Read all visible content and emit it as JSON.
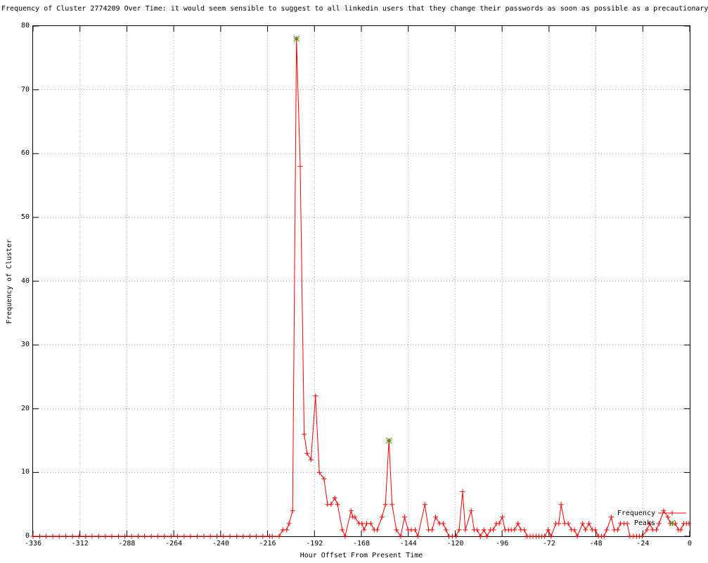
{
  "chart_data": {
    "type": "line",
    "title": "Frequency of Cluster 2774209 Over Time: it would seem sensible to suggest to all linkedin users that they change their passwords as soon as possible as a precautionary",
    "xlabel": "Hour Offset From Present Time",
    "ylabel": "Frequency of Cluster",
    "xlim": [
      -336,
      0
    ],
    "ylim": [
      0,
      80
    ],
    "x_ticks": [
      -336,
      -312,
      -288,
      -264,
      -240,
      -216,
      -192,
      -168,
      -144,
      -120,
      -96,
      -72,
      -48,
      -24,
      0
    ],
    "y_ticks": [
      0,
      10,
      20,
      30,
      40,
      50,
      60,
      70,
      80
    ],
    "grid": true,
    "grid_color": "#9e9e9e",
    "border_color": "#000000",
    "legend_position": "bottom-right-inside",
    "series": [
      {
        "name": "Frequency",
        "color": "#ff0000",
        "marker": "plus",
        "style": "linespoints",
        "points": [
          [
            -336,
            0
          ],
          [
            -332.6,
            0
          ],
          [
            -329.3,
            0
          ],
          [
            -325.9,
            0
          ],
          [
            -322.6,
            0
          ],
          [
            -319.2,
            0
          ],
          [
            -315.8,
            0
          ],
          [
            -312.5,
            0
          ],
          [
            -309.1,
            0
          ],
          [
            -305.8,
            0
          ],
          [
            -302.4,
            0
          ],
          [
            -299.0,
            0
          ],
          [
            -295.7,
            0
          ],
          [
            -292.3,
            0
          ],
          [
            -289.0,
            0
          ],
          [
            -285.6,
            0
          ],
          [
            -282.2,
            0
          ],
          [
            -278.9,
            0
          ],
          [
            -275.5,
            0
          ],
          [
            -272.2,
            0
          ],
          [
            -268.8,
            0
          ],
          [
            -265.4,
            0
          ],
          [
            -262.1,
            0
          ],
          [
            -258.7,
            0
          ],
          [
            -255.4,
            0
          ],
          [
            -252.0,
            0
          ],
          [
            -248.6,
            0
          ],
          [
            -245.3,
            0
          ],
          [
            -241.9,
            0
          ],
          [
            -238.6,
            0
          ],
          [
            -235.2,
            0
          ],
          [
            -231.8,
            0
          ],
          [
            -228.5,
            0
          ],
          [
            -225.1,
            0
          ],
          [
            -221.8,
            0
          ],
          [
            -218.4,
            0
          ],
          [
            -215.0,
            0
          ],
          [
            -213.6,
            0
          ],
          [
            -210.1,
            0
          ],
          [
            -208.2,
            1
          ],
          [
            -206.2,
            1
          ],
          [
            -205.0,
            2
          ],
          [
            -203.2,
            4
          ],
          [
            -201.2,
            78
          ],
          [
            -199.3,
            58
          ],
          [
            -197.3,
            16
          ],
          [
            -195.8,
            13
          ],
          [
            -193.8,
            12
          ],
          [
            -191.5,
            22
          ],
          [
            -189.5,
            10
          ],
          [
            -187.1,
            9
          ],
          [
            -185.3,
            5
          ],
          [
            -183.5,
            5
          ],
          [
            -181.6,
            6
          ],
          [
            -180.2,
            5
          ],
          [
            -177.8,
            1
          ],
          [
            -176.3,
            0
          ],
          [
            -173.3,
            4
          ],
          [
            -172.4,
            3
          ],
          [
            -171.3,
            3
          ],
          [
            -169.2,
            2
          ],
          [
            -167.7,
            2
          ],
          [
            -166.6,
            1
          ],
          [
            -165.3,
            2
          ],
          [
            -163.2,
            2
          ],
          [
            -161.4,
            1
          ],
          [
            -159.9,
            1
          ],
          [
            -157.5,
            3
          ],
          [
            -155.7,
            5
          ],
          [
            -153.9,
            15
          ],
          [
            -152.3,
            5
          ],
          [
            -150.1,
            1
          ],
          [
            -147.9,
            0
          ],
          [
            -145.9,
            3
          ],
          [
            -144.1,
            1
          ],
          [
            -142.5,
            1
          ],
          [
            -140.5,
            1
          ],
          [
            -139.1,
            0
          ],
          [
            -135.5,
            5
          ],
          [
            -133.6,
            1
          ],
          [
            -131.8,
            1
          ],
          [
            -130.0,
            3
          ],
          [
            -128.0,
            2
          ],
          [
            -126.2,
            2
          ],
          [
            -124.7,
            1
          ],
          [
            -123.2,
            0
          ],
          [
            -121.4,
            0
          ],
          [
            -119.6,
            0
          ],
          [
            -118.0,
            1
          ],
          [
            -116.2,
            7
          ],
          [
            -114.8,
            1
          ],
          [
            -111.8,
            4
          ],
          [
            -110.3,
            1
          ],
          [
            -108.8,
            1
          ],
          [
            -107.1,
            0
          ],
          [
            -105.3,
            1
          ],
          [
            -103.7,
            0
          ],
          [
            -101.9,
            1
          ],
          [
            -100.5,
            1
          ],
          [
            -98.9,
            2
          ],
          [
            -97.5,
            2
          ],
          [
            -95.9,
            3
          ],
          [
            -94.5,
            1
          ],
          [
            -92.7,
            1
          ],
          [
            -91.3,
            1
          ],
          [
            -89.7,
            1
          ],
          [
            -87.9,
            2
          ],
          [
            -86.4,
            1
          ],
          [
            -84.6,
            1
          ],
          [
            -83.2,
            0
          ],
          [
            -81.7,
            0
          ],
          [
            -80.2,
            0
          ],
          [
            -78.6,
            0
          ],
          [
            -77.2,
            0
          ],
          [
            -75.7,
            0
          ],
          [
            -74.2,
            0
          ],
          [
            -72.4,
            1
          ],
          [
            -70.9,
            0
          ],
          [
            -68.5,
            2
          ],
          [
            -67.0,
            2
          ],
          [
            -65.8,
            5
          ],
          [
            -64.0,
            2
          ],
          [
            -62.2,
            2
          ],
          [
            -60.5,
            1
          ],
          [
            -59.0,
            1
          ],
          [
            -57.5,
            0
          ],
          [
            -54.8,
            2
          ],
          [
            -53.3,
            1
          ],
          [
            -51.5,
            2
          ],
          [
            -49.9,
            1
          ],
          [
            -48.3,
            1
          ],
          [
            -46.7,
            0
          ],
          [
            -45.2,
            0
          ],
          [
            -43.8,
            0
          ],
          [
            -42.5,
            1
          ],
          [
            -40.1,
            3
          ],
          [
            -38.6,
            1
          ],
          [
            -36.9,
            1
          ],
          [
            -35.4,
            2
          ],
          [
            -33.6,
            2
          ],
          [
            -32.0,
            2
          ],
          [
            -30.6,
            0
          ],
          [
            -28.8,
            0
          ],
          [
            -27.2,
            0
          ],
          [
            -25.8,
            0
          ],
          [
            -24.3,
            0
          ],
          [
            -21.9,
            1
          ],
          [
            -20.4,
            2
          ],
          [
            -19.0,
            1
          ],
          [
            -17.1,
            1
          ],
          [
            -15.7,
            2
          ],
          [
            -13.3,
            4
          ],
          [
            -11.2,
            3
          ],
          [
            -10.0,
            2
          ],
          [
            -8.9,
            2
          ],
          [
            -7.3,
            2
          ],
          [
            -5.8,
            1
          ],
          [
            -4.6,
            1
          ],
          [
            -3.1,
            2
          ],
          [
            -1.7,
            2
          ],
          [
            -0.4,
            2
          ]
        ]
      },
      {
        "name": "Peaks",
        "color": "#00b000",
        "marker": "x",
        "style": "points",
        "points": [
          [
            -201.2,
            78
          ],
          [
            -153.9,
            15
          ]
        ]
      }
    ]
  }
}
